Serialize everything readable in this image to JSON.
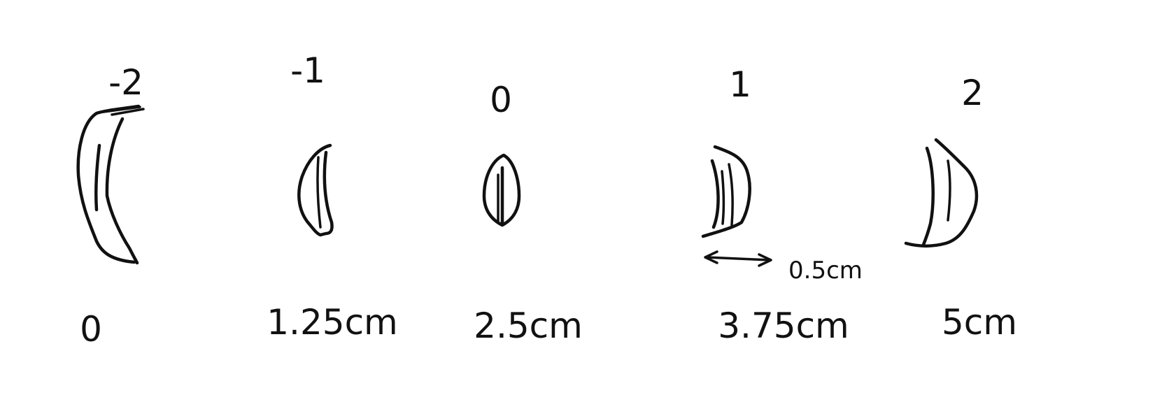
{
  "diagram": {
    "shapes": [
      {
        "top_label": "-2",
        "bottom_label": "0"
      },
      {
        "top_label": "-1",
        "bottom_label": "1.25cm"
      },
      {
        "top_label": "0",
        "bottom_label": "2.5cm"
      },
      {
        "top_label": "1",
        "bottom_label": "3.75cm"
      },
      {
        "top_label": "2",
        "bottom_label": "5cm"
      }
    ],
    "spacing_annotation": "0.5cm",
    "ink_color": "#111111"
  }
}
